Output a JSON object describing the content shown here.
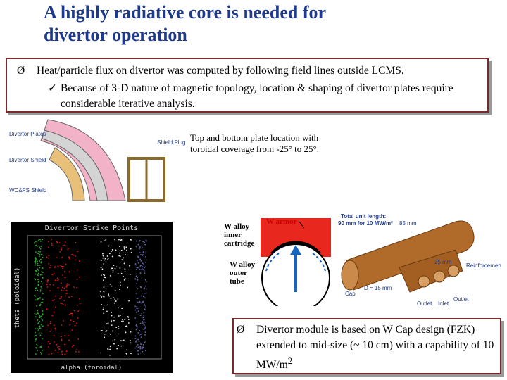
{
  "title": {
    "lines": [
      "A highly radiative core is needed for",
      "divertor operation"
    ]
  },
  "top_box": {
    "bullet": "Heat/particle flux on divertor was computed by following field lines outside LCMS.",
    "sub_bullet": "Because of 3-D nature of magnetic topology, location & shaping of divertor plates require considerable iterative analysis."
  },
  "cross_section": {
    "labels": [
      "Divertor Plates",
      "Divertor Shield",
      "WC&FS Shield",
      "Shield Plug"
    ]
  },
  "caption": {
    "lines": [
      "Top and bottom plate location with",
      "toroidal coverage from  -25° to    25°."
    ]
  },
  "strike_plot": {
    "title": "Divertor Strike Points",
    "y_label": "theta (poloidal)",
    "x_label": "alpha (toroidal)"
  },
  "w_cap": {
    "inner": [
      "W alloy",
      "inner",
      "cartridge"
    ],
    "armor": "W armor",
    "outer": [
      "W alloy",
      "outer",
      "tube"
    ]
  },
  "module": {
    "total": [
      "Total unit length:",
      "90 mm for 10 MW/m²"
    ],
    "length": "85 mm",
    "width": "25 mm",
    "reinforcement": "Reinforcement",
    "diameter": "D = 15 mm",
    "cap": "Cap",
    "outlet_left": "Outlet",
    "inlet": "Inlet",
    "outlet_right": "Outlet"
  },
  "bottom_box": {
    "text": "Divertor module is based on W Cap design (FZK) extended to mid-size (~ 10 cm) with a capability of 10 MW/m",
    "sup": "2"
  }
}
